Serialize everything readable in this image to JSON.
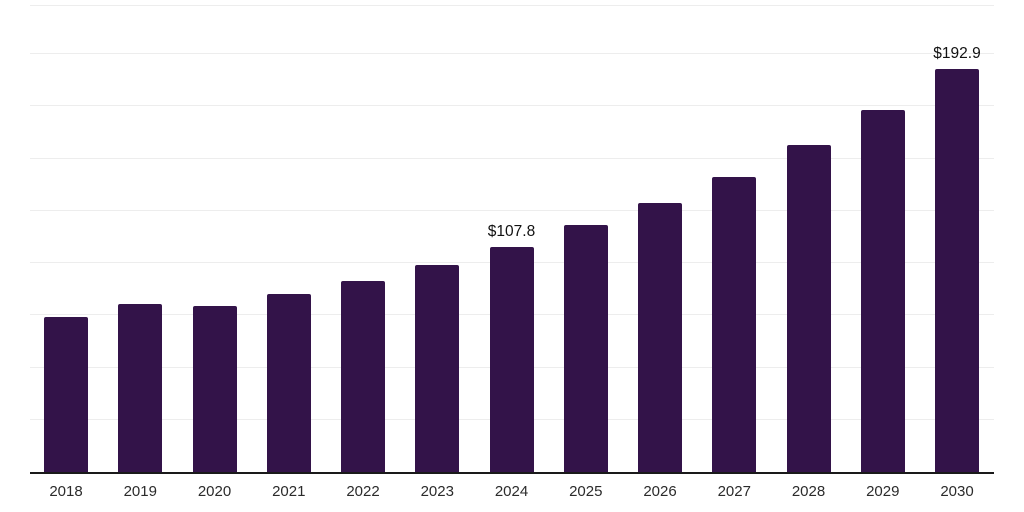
{
  "chart_data": {
    "type": "bar",
    "title": "",
    "xlabel": "",
    "ylabel": "",
    "categories": [
      "2018",
      "2019",
      "2020",
      "2021",
      "2022",
      "2023",
      "2024",
      "2025",
      "2026",
      "2027",
      "2028",
      "2029",
      "2030"
    ],
    "values": [
      74.3,
      80.3,
      79.6,
      85.4,
      91.5,
      99.0,
      107.8,
      118.1,
      128.8,
      141.2,
      156.3,
      173.1,
      192.9
    ],
    "data_labels": [
      "",
      "",
      "",
      "",
      "",
      "",
      "$107.8",
      "",
      "",
      "",
      "",
      "",
      "$192.9"
    ],
    "ylim": [
      0,
      223
    ],
    "gridline_step": 25,
    "grid": "horizontal",
    "legend": "none",
    "bar_color": "#331349",
    "axis_line_color": "#1a1a1a",
    "gridline_color": "#ededed",
    "label_color": "#111111",
    "tick_label_color": "#2b2b2b"
  }
}
